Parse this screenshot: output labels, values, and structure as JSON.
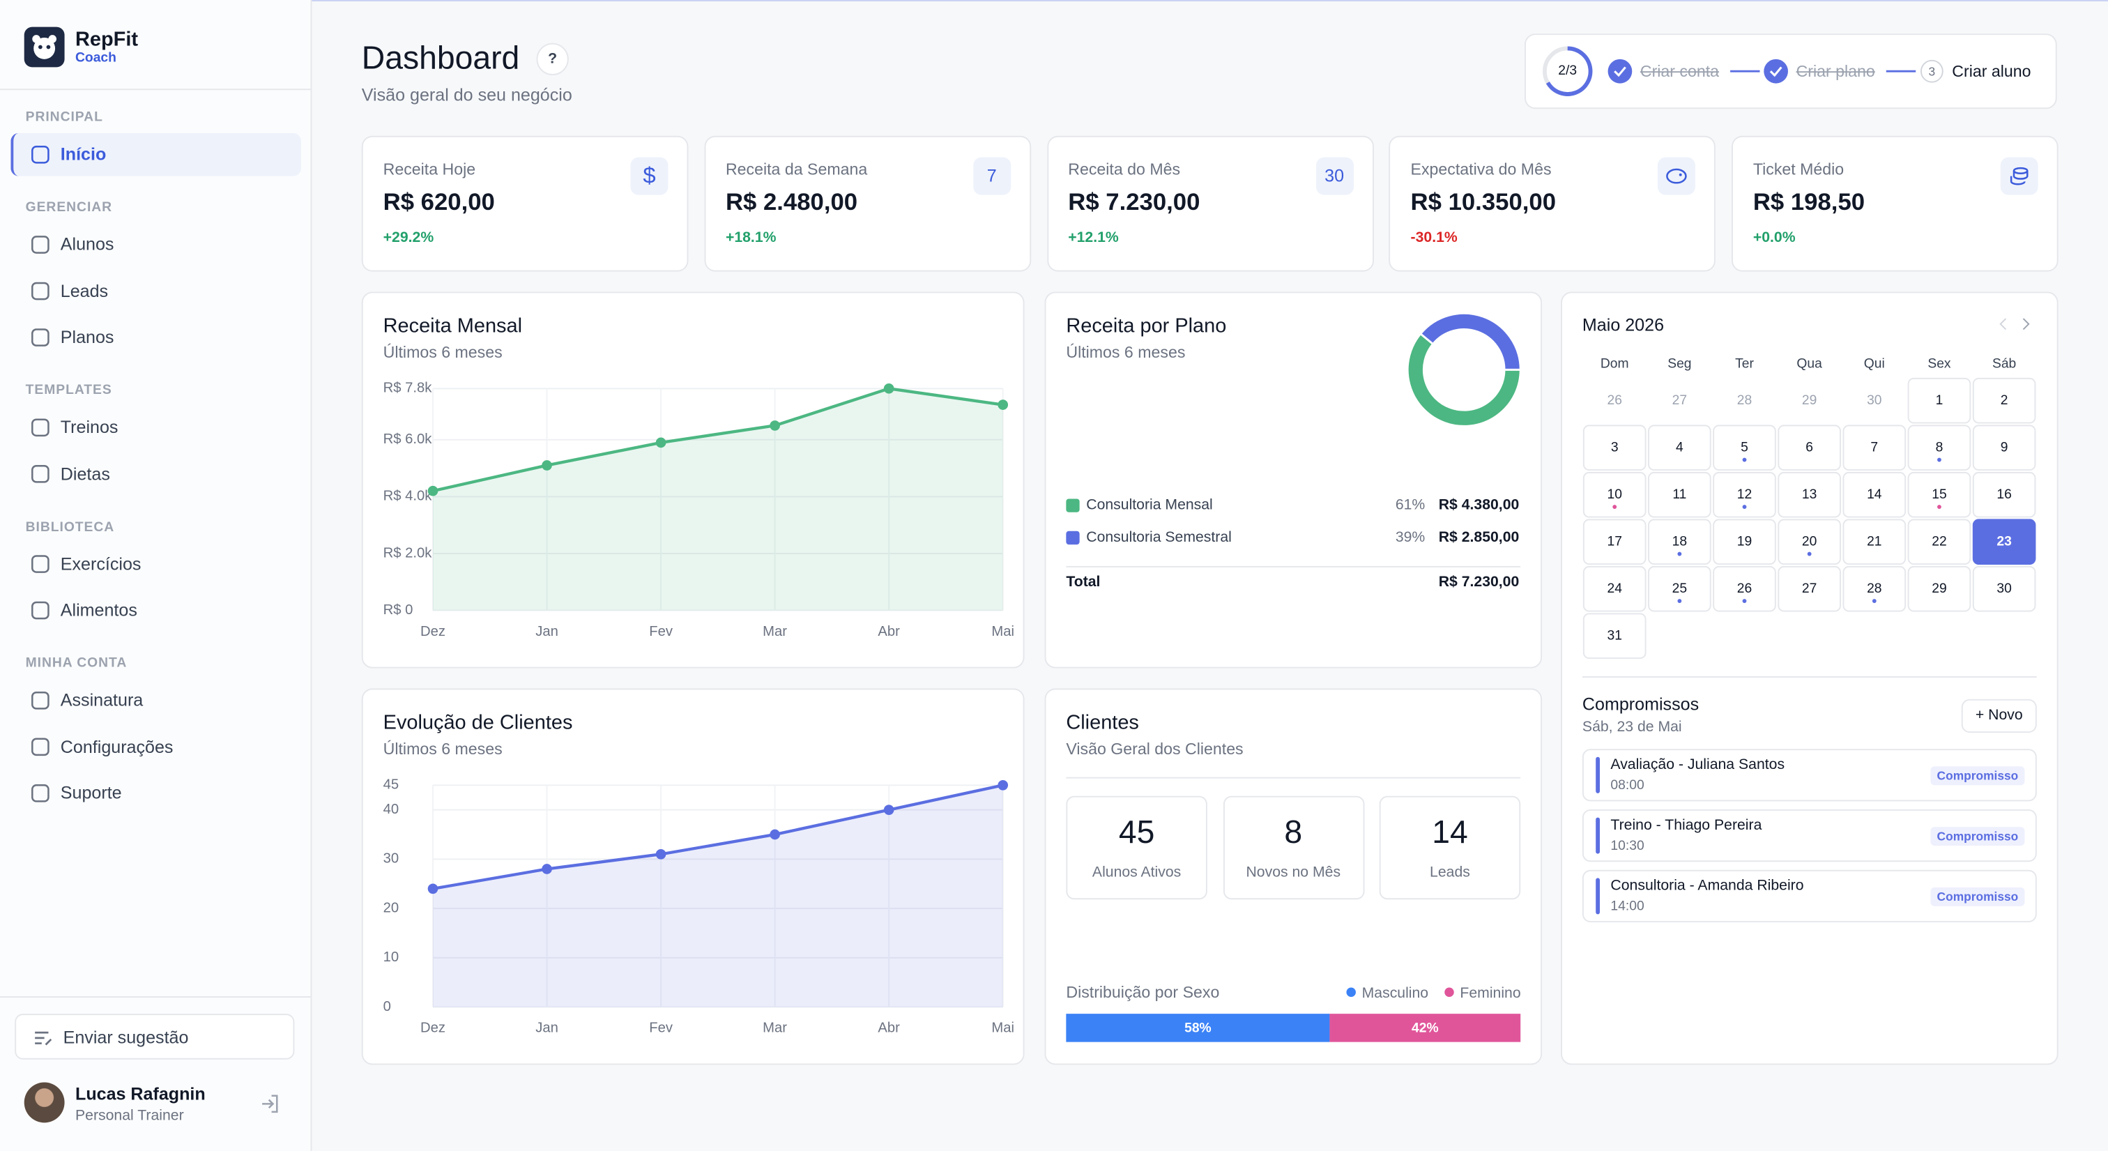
{
  "sidebar": {
    "brand": "RepFit",
    "brand_sub": "Coach",
    "sections": [
      {
        "title": "PRINCIPAL",
        "items": [
          "Início"
        ]
      },
      {
        "title": "GERENCIAR",
        "items": [
          "Alunos",
          "Leads",
          "Planos"
        ]
      },
      {
        "title": "TEMPLATES",
        "items": [
          "Treinos",
          "Dietas"
        ]
      },
      {
        "title": "BIBLIOTECA",
        "items": [
          "Exercícios",
          "Alimentos"
        ]
      },
      {
        "title": "MINHA CONTA",
        "items": [
          "Assinatura",
          "Configurações",
          "Suporte"
        ]
      }
    ],
    "feedback": "Enviar sugestão",
    "user": {
      "name": "Lucas Rafagnin",
      "role": "Personal Trainer"
    }
  },
  "header": {
    "title": "Dashboard",
    "help": "?",
    "subtitle": "Visão geral do seu negócio"
  },
  "onboarding": {
    "progress": "2/3",
    "steps": [
      "Criar conta",
      "Criar plano",
      "Criar aluno"
    ],
    "step_number": "3"
  },
  "kpis": [
    {
      "label": "Receita Hoje",
      "value": "R$ 620,00",
      "change": "+29.2%",
      "badge": "$"
    },
    {
      "label": "Receita da Semana",
      "value": "R$ 2.480,00",
      "change": "+18.1%",
      "badge": "7"
    },
    {
      "label": "Receita do Mês",
      "value": "R$ 7.230,00",
      "change": "+12.1%",
      "badge": "30"
    },
    {
      "label": "Expectativa do Mês",
      "value": "R$ 10.350,00",
      "change": "-30.1%"
    },
    {
      "label": "Ticket Médio",
      "value": "R$ 198,50",
      "change": "+0.0%"
    }
  ],
  "revenue_chart": {
    "type": "line",
    "title": "Receita Mensal",
    "subtitle": "Últimos 6 meses",
    "categories": [
      "Dez",
      "Jan",
      "Fev",
      "Mar",
      "Abr",
      "Mai"
    ],
    "values": [
      4200,
      5100,
      5900,
      6500,
      7800,
      7230
    ],
    "color": "#4cb782",
    "ylim": [
      0,
      7800
    ],
    "yticks": [
      {
        "value": 0,
        "label": "R$ 0"
      },
      {
        "value": 2000,
        "label": "R$ 2.0k"
      },
      {
        "value": 4000,
        "label": "R$ 4.0k"
      },
      {
        "value": 6000,
        "label": "R$ 6.0k"
      },
      {
        "value": 7800,
        "label": "R$ 7.8k"
      }
    ],
    "grid": true
  },
  "plan_chart": {
    "type": "pie",
    "title": "Receita por Plano",
    "subtitle": "Últimos 6 meses",
    "categories": [
      "Consultoria Mensal",
      "Consultoria Semestral"
    ],
    "values": [
      61,
      39
    ],
    "value_labels": [
      "61%",
      "39%"
    ],
    "amounts": [
      "R$ 4.380,00",
      "R$ 2.850,00"
    ],
    "colors": [
      "#4cb782",
      "#5b6ee1"
    ],
    "total_label": "Total",
    "total": "R$ 7.230,00"
  },
  "calendar": {
    "title": "Maio 2026",
    "weekdays": [
      "Dom",
      "Seg",
      "Ter",
      "Qua",
      "Qui",
      "Sex",
      "Sáb"
    ],
    "prev_days": [
      "26",
      "27",
      "28",
      "29",
      "30"
    ],
    "days": [
      {
        "day": "1"
      },
      {
        "day": "2"
      },
      {
        "day": "3"
      },
      {
        "day": "4"
      },
      {
        "day": "5",
        "dot": "#5b6ee1"
      },
      {
        "day": "6"
      },
      {
        "day": "7"
      },
      {
        "day": "8",
        "dot": "#5b6ee1"
      },
      {
        "day": "9"
      },
      {
        "day": "10",
        "dot": "#e0559a"
      },
      {
        "day": "11"
      },
      {
        "day": "12",
        "dot": "#5b6ee1"
      },
      {
        "day": "13"
      },
      {
        "day": "14"
      },
      {
        "day": "15",
        "dot": "#e0559a"
      },
      {
        "day": "16"
      },
      {
        "day": "17"
      },
      {
        "day": "18",
        "dot": "#5b6ee1"
      },
      {
        "day": "19"
      },
      {
        "day": "20",
        "dot": "#5b6ee1"
      },
      {
        "day": "21"
      },
      {
        "day": "22"
      },
      {
        "day": "23",
        "selected": true
      },
      {
        "day": "24"
      },
      {
        "day": "25",
        "dot": "#5b6ee1"
      },
      {
        "day": "26",
        "dot": "#5b6ee1"
      },
      {
        "day": "27"
      },
      {
        "day": "28",
        "dot": "#5b6ee1"
      },
      {
        "day": "29"
      },
      {
        "day": "30"
      },
      {
        "day": "31"
      }
    ]
  },
  "appointments": {
    "title": "Compromissos",
    "date": "Sáb, 23 de Mai",
    "button": "+ Novo",
    "items": [
      {
        "title": "Avaliação - Juliana Santos",
        "time": "08:00",
        "tag": "Compromisso"
      },
      {
        "title": "Treino - Thiago Pereira",
        "time": "10:30",
        "tag": "Compromisso"
      },
      {
        "title": "Consultoria - Amanda Ribeiro",
        "time": "14:00",
        "tag": "Compromisso"
      }
    ]
  },
  "clients_chart": {
    "type": "line",
    "title": "Evolução de Clientes",
    "subtitle": "Últimos 6 meses",
    "categories": [
      "Dez",
      "Jan",
      "Fev",
      "Mar",
      "Abr",
      "Mai"
    ],
    "values": [
      24,
      28,
      31,
      35,
      40,
      45
    ],
    "color": "#5b6ee1",
    "ylim": [
      0,
      45
    ],
    "yticks": [
      0,
      10,
      20,
      30,
      40,
      45
    ],
    "grid": true
  },
  "clients": {
    "title": "Clientes",
    "subtitle": "Visão Geral dos Clientes",
    "stats": [
      {
        "value": "45",
        "label": "Alunos Ativos"
      },
      {
        "value": "8",
        "label": "Novos no Mês"
      },
      {
        "value": "14",
        "label": "Leads"
      }
    ],
    "gender": {
      "title": "Distribuição por Sexo",
      "categories": [
        "Masculino",
        "Feminino"
      ],
      "values": [
        58,
        42
      ],
      "value_labels": [
        "58%",
        "42%"
      ],
      "colors": [
        "#3b82f6",
        "#e0559a"
      ]
    }
  }
}
